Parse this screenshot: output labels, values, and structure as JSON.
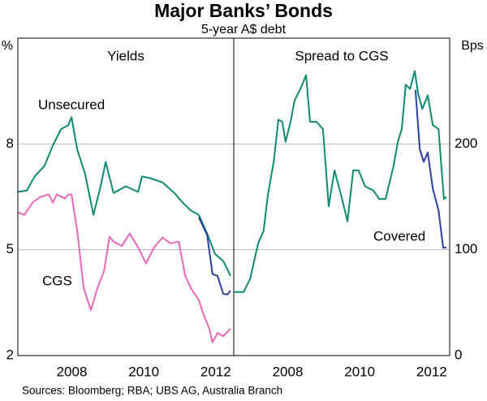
{
  "title": "Major Banks’ Bonds",
  "subtitle": "5-year A$ debt",
  "source": "Sources: Bloomberg; RBA; UBS AG, Australia Branch",
  "chart_data": [
    {
      "type": "line",
      "title": "Yields",
      "y_label": "%",
      "xlim": [
        2007,
        2013
      ],
      "ylim": [
        2,
        11
      ],
      "yticks": [
        2,
        5,
        8
      ],
      "xticks": [
        {
          "value": 2008.5,
          "label": "2008"
        },
        {
          "value": 2010.5,
          "label": "2010"
        },
        {
          "value": 2012.5,
          "label": "2012"
        }
      ],
      "grid": true,
      "series": [
        {
          "name": "Unsecured",
          "color": "#0f8a72",
          "x": [
            2007.0,
            2007.25,
            2007.47,
            2007.74,
            2007.97,
            2008.2,
            2008.4,
            2008.49,
            2008.65,
            2008.87,
            2009.1,
            2009.3,
            2009.44,
            2009.66,
            2010.0,
            2010.34,
            2010.45,
            2010.68,
            2011.02,
            2011.35,
            2011.58,
            2011.81,
            2012.03,
            2012.26,
            2012.48,
            2012.71,
            2012.91
          ],
          "values": [
            6.64,
            6.68,
            7.08,
            7.38,
            7.95,
            8.42,
            8.53,
            8.76,
            7.84,
            7.15,
            5.99,
            6.8,
            7.49,
            6.61,
            6.8,
            6.64,
            7.08,
            7.03,
            6.91,
            6.61,
            6.34,
            6.11,
            5.99,
            5.46,
            4.88,
            4.68,
            4.26
          ]
        },
        {
          "name": "CGS",
          "color": "#e868b8",
          "x": [
            2007.0,
            2007.18,
            2007.41,
            2007.63,
            2007.86,
            2007.97,
            2008.08,
            2008.31,
            2008.4,
            2008.49,
            2008.65,
            2008.83,
            2009.03,
            2009.21,
            2009.39,
            2009.55,
            2009.66,
            2009.89,
            2010.11,
            2010.34,
            2010.56,
            2010.79,
            2011.02,
            2011.24,
            2011.47,
            2011.65,
            2011.81,
            2012.03,
            2012.14,
            2012.32,
            2012.41,
            2012.55,
            2012.71,
            2012.91
          ],
          "values": [
            6.06,
            5.99,
            6.34,
            6.5,
            6.57,
            6.34,
            6.57,
            6.45,
            6.57,
            6.57,
            5.53,
            3.91,
            3.29,
            3.91,
            4.38,
            5.37,
            5.23,
            5.11,
            5.46,
            5.07,
            4.61,
            5.07,
            5.35,
            5.18,
            5.23,
            4.26,
            3.91,
            3.57,
            3.22,
            2.76,
            2.37,
            2.64,
            2.55,
            2.76
          ]
        },
        {
          "color": "#2b3f9f",
          "x": [
            2012.03,
            2012.26,
            2012.41,
            2012.55,
            2012.71,
            2012.82,
            2012.91
          ],
          "values": [
            5.92,
            5.42,
            4.31,
            4.26,
            3.75,
            3.73,
            3.84
          ]
        }
      ]
    },
    {
      "type": "line",
      "title": "Spread to CGS",
      "y_label": "Bps",
      "xlim": [
        2007,
        2013
      ],
      "ylim": [
        0,
        300
      ],
      "yticks": [
        0,
        100,
        200
      ],
      "xticks": [
        {
          "value": 2008.5,
          "label": "2008"
        },
        {
          "value": 2010.5,
          "label": "2010"
        },
        {
          "value": 2012.5,
          "label": "2012"
        }
      ],
      "grid": true,
      "series": [
        {
          "color": "#0f8a72",
          "x": [
            2007.0,
            2007.27,
            2007.45,
            2007.68,
            2007.83,
            2007.95,
            2008.11,
            2008.24,
            2008.35,
            2008.44,
            2008.58,
            2008.69,
            2008.85,
            2009.01,
            2009.12,
            2009.3,
            2009.48,
            2009.64,
            2009.8,
            2009.98,
            2010.16,
            2010.32,
            2010.47,
            2010.65,
            2010.88,
            2011.04,
            2011.22,
            2011.44,
            2011.56,
            2011.67,
            2011.78,
            2011.9,
            2012.03,
            2012.12,
            2012.24,
            2012.39,
            2012.53,
            2012.69,
            2012.84,
            2012.91
          ],
          "values": [
            60,
            60,
            72,
            106,
            118,
            152,
            183,
            223,
            221,
            202,
            221,
            241,
            252,
            265,
            221,
            221,
            214,
            141,
            175,
            152,
            127,
            175,
            175,
            160,
            156,
            148,
            148,
            179,
            202,
            214,
            256,
            252,
            269,
            248,
            233,
            246,
            218,
            214,
            148,
            150
          ]
        },
        {
          "name": "Covered",
          "color": "#2b3f9f",
          "x": [
            2012.05,
            2012.17,
            2012.28,
            2012.39,
            2012.53,
            2012.69,
            2012.82,
            2012.91
          ],
          "values": [
            251,
            195,
            183,
            192,
            158,
            137,
            102,
            102
          ]
        }
      ]
    }
  ]
}
